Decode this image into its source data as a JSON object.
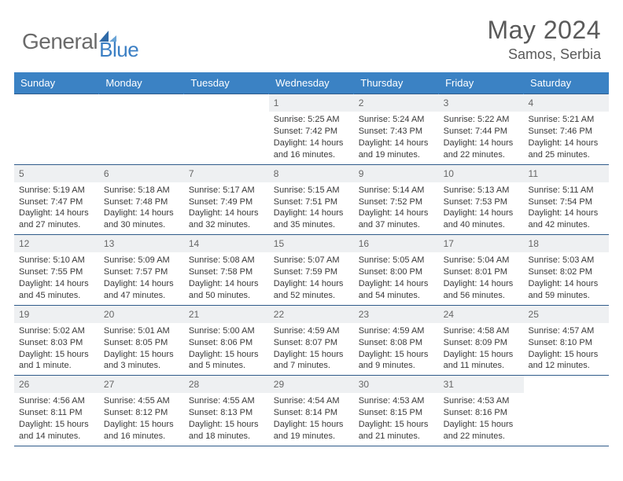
{
  "brand": {
    "word1": "General",
    "word2": "Blue"
  },
  "title": {
    "monthYear": "May 2024",
    "location": "Samos, Serbia"
  },
  "style": {
    "headerBg": "#3b82c4",
    "headerText": "#ffffff",
    "daynumBg": "#eef0f2",
    "borderColor": "#2f5b8a",
    "bodyText": "#3a3a3a",
    "logoGray": "#6a6a6a",
    "logoBlue": "#3b7fc4"
  },
  "dow": [
    "Sunday",
    "Monday",
    "Tuesday",
    "Wednesday",
    "Thursday",
    "Friday",
    "Saturday"
  ],
  "weeks": [
    [
      {
        "n": "",
        "sr": "",
        "ss": "",
        "dl": "",
        "empty": true
      },
      {
        "n": "",
        "sr": "",
        "ss": "",
        "dl": "",
        "empty": true
      },
      {
        "n": "",
        "sr": "",
        "ss": "",
        "dl": "",
        "empty": true
      },
      {
        "n": "1",
        "sr": "Sunrise: 5:25 AM",
        "ss": "Sunset: 7:42 PM",
        "dl": "Daylight: 14 hours and 16 minutes."
      },
      {
        "n": "2",
        "sr": "Sunrise: 5:24 AM",
        "ss": "Sunset: 7:43 PM",
        "dl": "Daylight: 14 hours and 19 minutes."
      },
      {
        "n": "3",
        "sr": "Sunrise: 5:22 AM",
        "ss": "Sunset: 7:44 PM",
        "dl": "Daylight: 14 hours and 22 minutes."
      },
      {
        "n": "4",
        "sr": "Sunrise: 5:21 AM",
        "ss": "Sunset: 7:46 PM",
        "dl": "Daylight: 14 hours and 25 minutes."
      }
    ],
    [
      {
        "n": "5",
        "sr": "Sunrise: 5:19 AM",
        "ss": "Sunset: 7:47 PM",
        "dl": "Daylight: 14 hours and 27 minutes."
      },
      {
        "n": "6",
        "sr": "Sunrise: 5:18 AM",
        "ss": "Sunset: 7:48 PM",
        "dl": "Daylight: 14 hours and 30 minutes."
      },
      {
        "n": "7",
        "sr": "Sunrise: 5:17 AM",
        "ss": "Sunset: 7:49 PM",
        "dl": "Daylight: 14 hours and 32 minutes."
      },
      {
        "n": "8",
        "sr": "Sunrise: 5:15 AM",
        "ss": "Sunset: 7:51 PM",
        "dl": "Daylight: 14 hours and 35 minutes."
      },
      {
        "n": "9",
        "sr": "Sunrise: 5:14 AM",
        "ss": "Sunset: 7:52 PM",
        "dl": "Daylight: 14 hours and 37 minutes."
      },
      {
        "n": "10",
        "sr": "Sunrise: 5:13 AM",
        "ss": "Sunset: 7:53 PM",
        "dl": "Daylight: 14 hours and 40 minutes."
      },
      {
        "n": "11",
        "sr": "Sunrise: 5:11 AM",
        "ss": "Sunset: 7:54 PM",
        "dl": "Daylight: 14 hours and 42 minutes."
      }
    ],
    [
      {
        "n": "12",
        "sr": "Sunrise: 5:10 AM",
        "ss": "Sunset: 7:55 PM",
        "dl": "Daylight: 14 hours and 45 minutes."
      },
      {
        "n": "13",
        "sr": "Sunrise: 5:09 AM",
        "ss": "Sunset: 7:57 PM",
        "dl": "Daylight: 14 hours and 47 minutes."
      },
      {
        "n": "14",
        "sr": "Sunrise: 5:08 AM",
        "ss": "Sunset: 7:58 PM",
        "dl": "Daylight: 14 hours and 50 minutes."
      },
      {
        "n": "15",
        "sr": "Sunrise: 5:07 AM",
        "ss": "Sunset: 7:59 PM",
        "dl": "Daylight: 14 hours and 52 minutes."
      },
      {
        "n": "16",
        "sr": "Sunrise: 5:05 AM",
        "ss": "Sunset: 8:00 PM",
        "dl": "Daylight: 14 hours and 54 minutes."
      },
      {
        "n": "17",
        "sr": "Sunrise: 5:04 AM",
        "ss": "Sunset: 8:01 PM",
        "dl": "Daylight: 14 hours and 56 minutes."
      },
      {
        "n": "18",
        "sr": "Sunrise: 5:03 AM",
        "ss": "Sunset: 8:02 PM",
        "dl": "Daylight: 14 hours and 59 minutes."
      }
    ],
    [
      {
        "n": "19",
        "sr": "Sunrise: 5:02 AM",
        "ss": "Sunset: 8:03 PM",
        "dl": "Daylight: 15 hours and 1 minute."
      },
      {
        "n": "20",
        "sr": "Sunrise: 5:01 AM",
        "ss": "Sunset: 8:05 PM",
        "dl": "Daylight: 15 hours and 3 minutes."
      },
      {
        "n": "21",
        "sr": "Sunrise: 5:00 AM",
        "ss": "Sunset: 8:06 PM",
        "dl": "Daylight: 15 hours and 5 minutes."
      },
      {
        "n": "22",
        "sr": "Sunrise: 4:59 AM",
        "ss": "Sunset: 8:07 PM",
        "dl": "Daylight: 15 hours and 7 minutes."
      },
      {
        "n": "23",
        "sr": "Sunrise: 4:59 AM",
        "ss": "Sunset: 8:08 PM",
        "dl": "Daylight: 15 hours and 9 minutes."
      },
      {
        "n": "24",
        "sr": "Sunrise: 4:58 AM",
        "ss": "Sunset: 8:09 PM",
        "dl": "Daylight: 15 hours and 11 minutes."
      },
      {
        "n": "25",
        "sr": "Sunrise: 4:57 AM",
        "ss": "Sunset: 8:10 PM",
        "dl": "Daylight: 15 hours and 12 minutes."
      }
    ],
    [
      {
        "n": "26",
        "sr": "Sunrise: 4:56 AM",
        "ss": "Sunset: 8:11 PM",
        "dl": "Daylight: 15 hours and 14 minutes."
      },
      {
        "n": "27",
        "sr": "Sunrise: 4:55 AM",
        "ss": "Sunset: 8:12 PM",
        "dl": "Daylight: 15 hours and 16 minutes."
      },
      {
        "n": "28",
        "sr": "Sunrise: 4:55 AM",
        "ss": "Sunset: 8:13 PM",
        "dl": "Daylight: 15 hours and 18 minutes."
      },
      {
        "n": "29",
        "sr": "Sunrise: 4:54 AM",
        "ss": "Sunset: 8:14 PM",
        "dl": "Daylight: 15 hours and 19 minutes."
      },
      {
        "n": "30",
        "sr": "Sunrise: 4:53 AM",
        "ss": "Sunset: 8:15 PM",
        "dl": "Daylight: 15 hours and 21 minutes."
      },
      {
        "n": "31",
        "sr": "Sunrise: 4:53 AM",
        "ss": "Sunset: 8:16 PM",
        "dl": "Daylight: 15 hours and 22 minutes."
      },
      {
        "n": "",
        "sr": "",
        "ss": "",
        "dl": "",
        "empty": true
      }
    ]
  ]
}
